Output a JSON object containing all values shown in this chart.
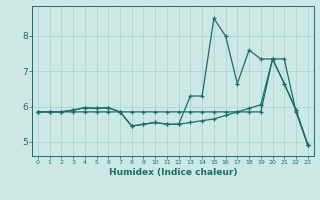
{
  "xlabel": "Humidex (Indice chaleur)",
  "bg_color": "#cce8e4",
  "line_color": "#1a6e64",
  "grid_color": "#aad0cc",
  "xlim": [
    -0.5,
    23.5
  ],
  "ylim": [
    4.6,
    8.85
  ],
  "yticks": [
    5,
    6,
    7,
    8
  ],
  "xticks": [
    0,
    1,
    2,
    3,
    4,
    5,
    6,
    7,
    8,
    9,
    10,
    11,
    12,
    13,
    14,
    15,
    16,
    17,
    18,
    19,
    20,
    21,
    22,
    23
  ],
  "line_straight_x": [
    0,
    1,
    2,
    3,
    4,
    5,
    6,
    7,
    8,
    9,
    10,
    11,
    12,
    13,
    14,
    15,
    16,
    17,
    18,
    19,
    20,
    21,
    22,
    23
  ],
  "line_straight_y": [
    5.85,
    5.85,
    5.85,
    5.85,
    5.85,
    5.85,
    5.85,
    5.85,
    5.85,
    5.85,
    5.85,
    5.85,
    5.85,
    5.85,
    5.85,
    5.85,
    5.85,
    5.85,
    5.85,
    5.85,
    7.35,
    7.35,
    5.85,
    4.92
  ],
  "line_jagged_x": [
    0,
    1,
    2,
    3,
    4,
    5,
    6,
    7,
    8,
    9,
    10,
    11,
    12,
    13,
    14,
    15,
    16,
    17,
    18,
    19,
    20,
    21,
    22,
    23
  ],
  "line_jagged_y": [
    5.85,
    5.85,
    5.85,
    5.9,
    5.97,
    5.95,
    5.97,
    5.85,
    5.45,
    5.5,
    5.55,
    5.5,
    5.5,
    6.3,
    6.3,
    8.5,
    8.0,
    6.65,
    7.6,
    7.35,
    7.35,
    6.65,
    5.9,
    4.92
  ],
  "line_diagonal_x": [
    0,
    1,
    2,
    3,
    4,
    5,
    6,
    7,
    8,
    9,
    10,
    11,
    12,
    13,
    14,
    15,
    16,
    17,
    18,
    19,
    20,
    21,
    22,
    23
  ],
  "line_diagonal_y": [
    5.85,
    5.85,
    5.85,
    5.9,
    5.97,
    5.95,
    5.97,
    5.85,
    5.45,
    5.5,
    5.55,
    5.5,
    5.5,
    5.55,
    5.6,
    5.65,
    5.75,
    5.85,
    5.95,
    6.05,
    7.35,
    6.65,
    5.9,
    4.92
  ]
}
